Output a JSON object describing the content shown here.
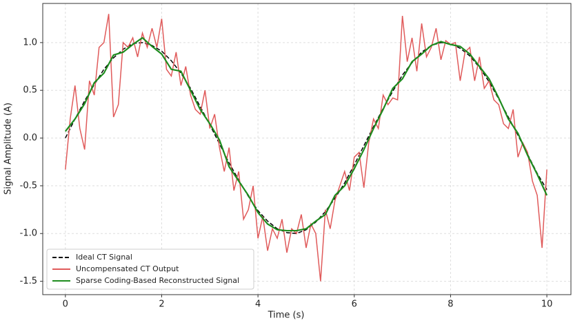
{
  "chart_data": {
    "type": "line",
    "xlabel": "Time (s)",
    "ylabel": "Signal Amplitude (A)",
    "xlim": [
      -0.47,
      10.5
    ],
    "ylim": [
      -1.64,
      1.41
    ],
    "xticks": [
      0,
      2,
      4,
      6,
      8,
      10
    ],
    "yticks": [
      {
        "value": -1.5,
        "label": "-1.5"
      },
      {
        "value": -1,
        "label": "-1.0"
      },
      {
        "value": -0.5,
        "label": "-0.5"
      },
      {
        "value": 0,
        "label": "0.0"
      },
      {
        "value": 0.5,
        "label": "0.5"
      },
      {
        "value": 1,
        "label": "1.0"
      }
    ],
    "grid": true,
    "legend": "lower left",
    "series": [
      {
        "name": "Ideal CT Signal",
        "color": "#000000",
        "dash": true,
        "x": [
          0,
          0.2,
          0.4,
          0.6,
          0.8,
          1,
          1.2,
          1.4,
          1.6,
          1.8,
          2,
          2.2,
          2.4,
          2.6,
          2.8,
          3,
          3.2,
          3.4,
          3.6,
          3.8,
          4,
          4.2,
          4.4,
          4.6,
          4.8,
          5,
          5.2,
          5.4,
          5.6,
          5.8,
          6,
          6.2,
          6.4,
          6.6,
          6.8,
          7,
          7.2,
          7.4,
          7.6,
          7.8,
          8,
          8.2,
          8.4,
          8.6,
          8.8,
          9,
          9.2,
          9.4,
          9.6,
          9.8,
          10
        ],
        "values": [
          0,
          0.2,
          0.39,
          0.56,
          0.72,
          0.84,
          0.93,
          0.99,
          1.0,
          0.97,
          0.91,
          0.81,
          0.68,
          0.52,
          0.33,
          0.14,
          -0.06,
          -0.26,
          -0.44,
          -0.61,
          -0.76,
          -0.87,
          -0.95,
          -0.99,
          -1.0,
          -0.96,
          -0.88,
          -0.77,
          -0.63,
          -0.47,
          -0.28,
          -0.08,
          0.12,
          0.31,
          0.49,
          0.66,
          0.79,
          0.9,
          0.97,
          1.0,
          0.99,
          0.94,
          0.86,
          0.74,
          0.59,
          0.41,
          0.22,
          0.03,
          -0.17,
          -0.37,
          -0.54
        ]
      },
      {
        "name": "Uncompensated CT Output",
        "color": "#e05a5a",
        "x": [
          0,
          0.1,
          0.2,
          0.3,
          0.4,
          0.5,
          0.6,
          0.7,
          0.8,
          0.9,
          1,
          1.1,
          1.2,
          1.3,
          1.4,
          1.5,
          1.6,
          1.7,
          1.8,
          1.9,
          2,
          2.1,
          2.2,
          2.3,
          2.4,
          2.5,
          2.6,
          2.7,
          2.8,
          2.9,
          3,
          3.1,
          3.2,
          3.3,
          3.4,
          3.5,
          3.6,
          3.7,
          3.8,
          3.9,
          4,
          4.1,
          4.2,
          4.3,
          4.4,
          4.5,
          4.6,
          4.7,
          4.8,
          4.9,
          5,
          5.1,
          5.2,
          5.3,
          5.4,
          5.5,
          5.6,
          5.7,
          5.8,
          5.9,
          6,
          6.1,
          6.2,
          6.3,
          6.4,
          6.5,
          6.6,
          6.7,
          6.8,
          6.9,
          7,
          7.1,
          7.2,
          7.3,
          7.4,
          7.5,
          7.6,
          7.7,
          7.8,
          7.9,
          8,
          8.1,
          8.2,
          8.3,
          8.4,
          8.5,
          8.6,
          8.7,
          8.8,
          8.9,
          9,
          9.1,
          9.2,
          9.3,
          9.4,
          9.5,
          9.6,
          9.7,
          9.8,
          9.9,
          10
        ],
        "values": [
          -0.33,
          0.2,
          0.55,
          0.1,
          -0.12,
          0.6,
          0.45,
          0.95,
          1.0,
          1.3,
          0.22,
          0.35,
          1.0,
          0.95,
          1.05,
          0.85,
          1.1,
          0.95,
          1.15,
          0.95,
          1.25,
          0.72,
          0.65,
          0.9,
          0.55,
          0.75,
          0.45,
          0.3,
          0.25,
          0.5,
          0.1,
          0.25,
          -0.1,
          -0.35,
          -0.1,
          -0.55,
          -0.35,
          -0.85,
          -0.75,
          -0.5,
          -1.05,
          -0.82,
          -1.18,
          -0.95,
          -1.05,
          -0.85,
          -1.2,
          -0.95,
          -1.0,
          -0.8,
          -1.15,
          -0.9,
          -1.0,
          -1.5,
          -0.75,
          -0.95,
          -0.65,
          -0.5,
          -0.35,
          -0.55,
          -0.2,
          -0.15,
          -0.52,
          -0.05,
          0.2,
          0.1,
          0.45,
          0.35,
          0.42,
          0.4,
          1.28,
          0.8,
          1.05,
          0.7,
          1.2,
          0.85,
          0.95,
          1.15,
          0.82,
          1.02,
          0.98,
          1.0,
          0.6,
          0.9,
          0.95,
          0.6,
          0.85,
          0.52,
          0.6,
          0.4,
          0.35,
          0.15,
          0.1,
          0.3,
          -0.2,
          -0.05,
          -0.15,
          -0.45,
          -0.6,
          -1.15,
          -0.33
        ]
      },
      {
        "name": "Sparse Coding-Based Reconstructed Signal",
        "color": "#1e8c1e",
        "x": [
          0,
          0.2,
          0.4,
          0.6,
          0.8,
          1,
          1.2,
          1.4,
          1.6,
          1.8,
          2,
          2.2,
          2.4,
          2.6,
          2.8,
          3,
          3.2,
          3.4,
          3.6,
          3.8,
          4,
          4.2,
          4.4,
          4.6,
          4.8,
          5,
          5.2,
          5.4,
          5.6,
          5.8,
          6,
          6.2,
          6.4,
          6.6,
          6.8,
          7,
          7.2,
          7.4,
          7.6,
          7.8,
          8,
          8.2,
          8.4,
          8.6,
          8.8,
          9,
          9.2,
          9.4,
          9.6,
          9.8,
          10
        ],
        "values": [
          0.07,
          0.2,
          0.36,
          0.58,
          0.68,
          0.87,
          0.9,
          0.98,
          1.05,
          0.96,
          0.88,
          0.72,
          0.7,
          0.5,
          0.3,
          0.15,
          -0.02,
          -0.3,
          -0.45,
          -0.6,
          -0.78,
          -0.9,
          -0.96,
          -0.97,
          -0.97,
          -0.95,
          -0.87,
          -0.8,
          -0.6,
          -0.5,
          -0.32,
          -0.12,
          0.1,
          0.3,
          0.52,
          0.62,
          0.8,
          0.88,
          0.97,
          1.01,
          0.98,
          0.96,
          0.88,
          0.75,
          0.62,
          0.42,
          0.2,
          0.05,
          -0.18,
          -0.38,
          -0.6
        ]
      }
    ]
  }
}
